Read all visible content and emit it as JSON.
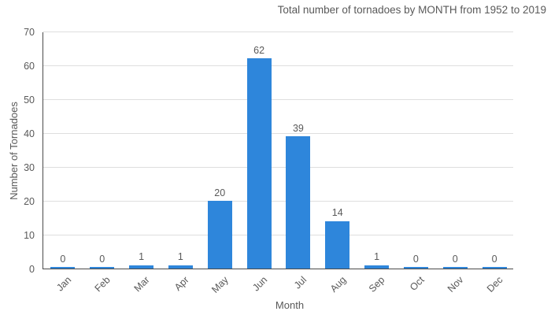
{
  "chart_data": {
    "type": "bar",
    "title": "Total number of tornadoes by MONTH from 1952 to 2019",
    "xlabel": "Month",
    "ylabel": "Number of Tornadoes",
    "categories": [
      "Jan",
      "Feb",
      "Mar",
      "Apr",
      "May",
      "Jun",
      "Jul",
      "Aug",
      "Sep",
      "Oct",
      "Nov",
      "Dec"
    ],
    "values": [
      0,
      0,
      1,
      1,
      20,
      62,
      39,
      14,
      1,
      0,
      0,
      0
    ],
    "value_labels": [
      "0",
      "0",
      "1",
      "1",
      "20",
      "62",
      "39",
      "14",
      "1",
      "0",
      "0",
      "0"
    ],
    "ylim": [
      0,
      70
    ],
    "yticks": [
      0,
      10,
      20,
      30,
      40,
      50,
      60,
      70
    ],
    "grid": true,
    "legend": "none",
    "bar_color": "#2e86db",
    "gridline_color": "#dedede",
    "axis_line_color": "#4a4a4a",
    "text_color": "#595959"
  }
}
